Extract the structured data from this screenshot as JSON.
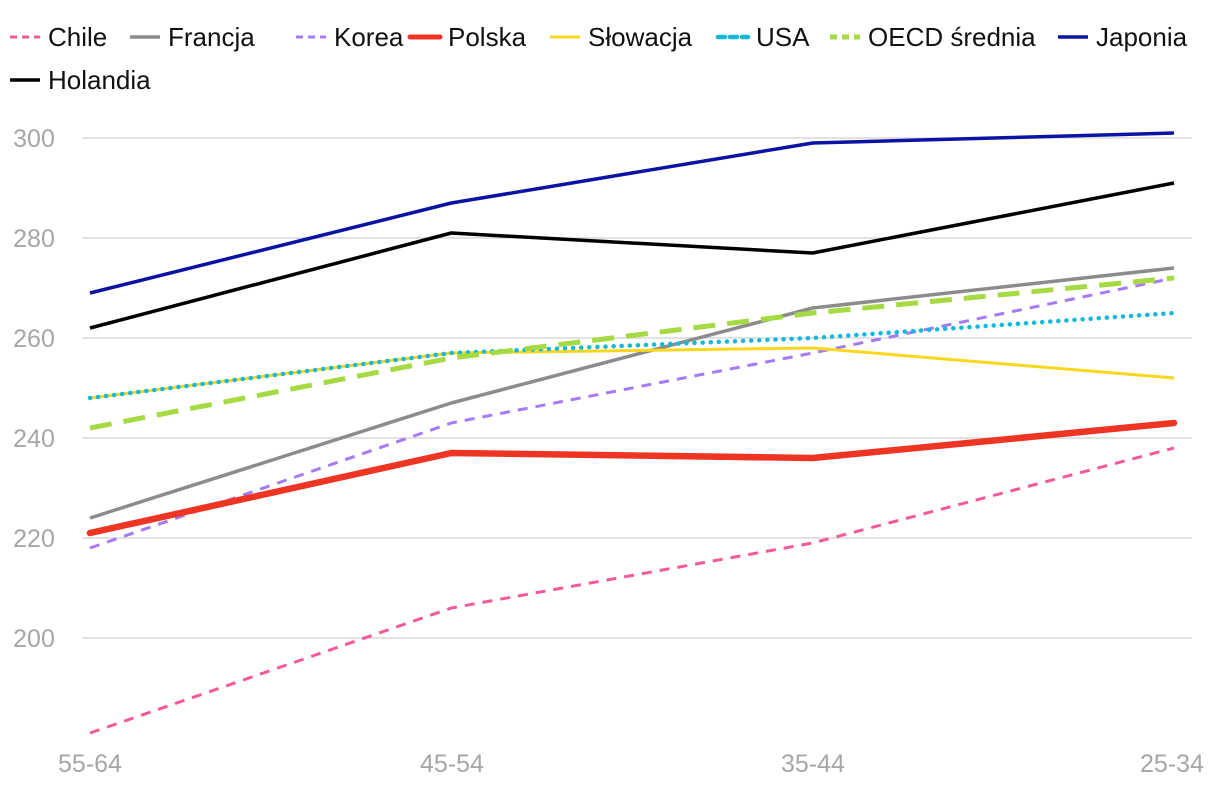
{
  "chart_data": {
    "type": "line",
    "categories": [
      "55-64",
      "45-54",
      "35-44",
      "25-34"
    ],
    "ylim": [
      180,
      300
    ],
    "yticks": [
      200,
      220,
      240,
      260,
      280,
      300
    ],
    "grid": true,
    "legend_position": "top",
    "series": [
      {
        "name": "Chile",
        "values": [
          181,
          206,
          219,
          238
        ],
        "color": "#f4599a",
        "style": "dashed-fine"
      },
      {
        "name": "Francja",
        "values": [
          224,
          247,
          266,
          274
        ],
        "color": "#8c8c8c",
        "style": "solid"
      },
      {
        "name": "Korea",
        "values": [
          218,
          243,
          257,
          272
        ],
        "color": "#a57bf5",
        "style": "dashed-fine"
      },
      {
        "name": "Polska",
        "values": [
          221,
          237,
          236,
          243
        ],
        "color": "#ee3524",
        "style": "solid-thick"
      },
      {
        "name": "Słowacja",
        "values": [
          248,
          257,
          258,
          252
        ],
        "color": "#f9d71c",
        "style": "solid-thin"
      },
      {
        "name": "USA",
        "values": [
          248,
          257,
          260,
          265
        ],
        "color": "#15b8d9",
        "style": "dotted"
      },
      {
        "name": "OECD średnia",
        "values": [
          242,
          256,
          265,
          272
        ],
        "color": "#a6da43",
        "style": "dashed-thick"
      },
      {
        "name": "Japonia",
        "values": [
          269,
          287,
          299,
          301
        ],
        "color": "#0a13a3",
        "style": "solid"
      },
      {
        "name": "Holandia",
        "values": [
          262,
          281,
          277,
          291
        ],
        "color": "#000000",
        "style": "solid"
      }
    ]
  }
}
